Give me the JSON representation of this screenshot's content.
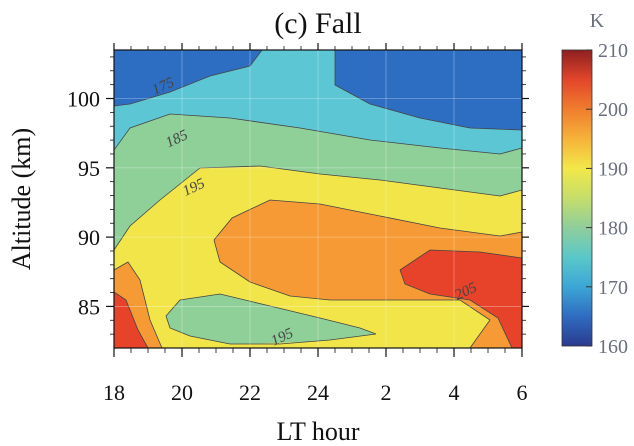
{
  "chart_data": {
    "type": "contour",
    "title": "(c) Fall",
    "xlabel": "LT hour",
    "ylabel": "Altitude (km)",
    "x_ticks": [
      "18",
      "20",
      "22",
      "24",
      "2",
      "4",
      "6"
    ],
    "x_tick_values": [
      18,
      20,
      22,
      24,
      26,
      28,
      30
    ],
    "xlim": [
      18,
      30
    ],
    "y_ticks": [
      "85",
      "90",
      "95",
      "100"
    ],
    "y_tick_values": [
      85,
      90,
      95,
      100
    ],
    "ylim": [
      82,
      103.5
    ],
    "colorbar": {
      "unit": "K",
      "ticks": [
        "160",
        "170",
        "180",
        "190",
        "200",
        "210"
      ],
      "tick_values": [
        160,
        170,
        180,
        190,
        200,
        210
      ],
      "range": [
        160,
        210
      ],
      "colors": [
        "#2b3a8f",
        "#2f6cc0",
        "#3ca6d6",
        "#5ac8c8",
        "#8fce9c",
        "#c6de6a",
        "#f2e84a",
        "#f6b23a",
        "#f07d2e",
        "#e2462a",
        "#8e1f22"
      ]
    },
    "contour_levels": [
      175,
      180,
      185,
      190,
      195,
      200,
      205
    ],
    "contour_labels": [
      {
        "text": "175",
        "x": 19.5,
        "y": 100.6
      },
      {
        "text": "185",
        "x": 19.9,
        "y": 96.8
      },
      {
        "text": "195",
        "x": 20.4,
        "y": 93.3
      },
      {
        "text": "205",
        "x": 28.4,
        "y": 85.8
      },
      {
        "text": "195",
        "x": 23.0,
        "y": 82.5
      }
    ],
    "regions": [
      {
        "level": 172,
        "color": "#2e6ec2"
      },
      {
        "level": 182,
        "color": "#5cc6d4"
      },
      {
        "level": 187,
        "color": "#8fcf98"
      },
      {
        "level": 192,
        "color": "#f1e54a"
      },
      {
        "level": 197,
        "color": "#f59a34"
      },
      {
        "level": 203,
        "color": "#e6432a"
      }
    ]
  }
}
